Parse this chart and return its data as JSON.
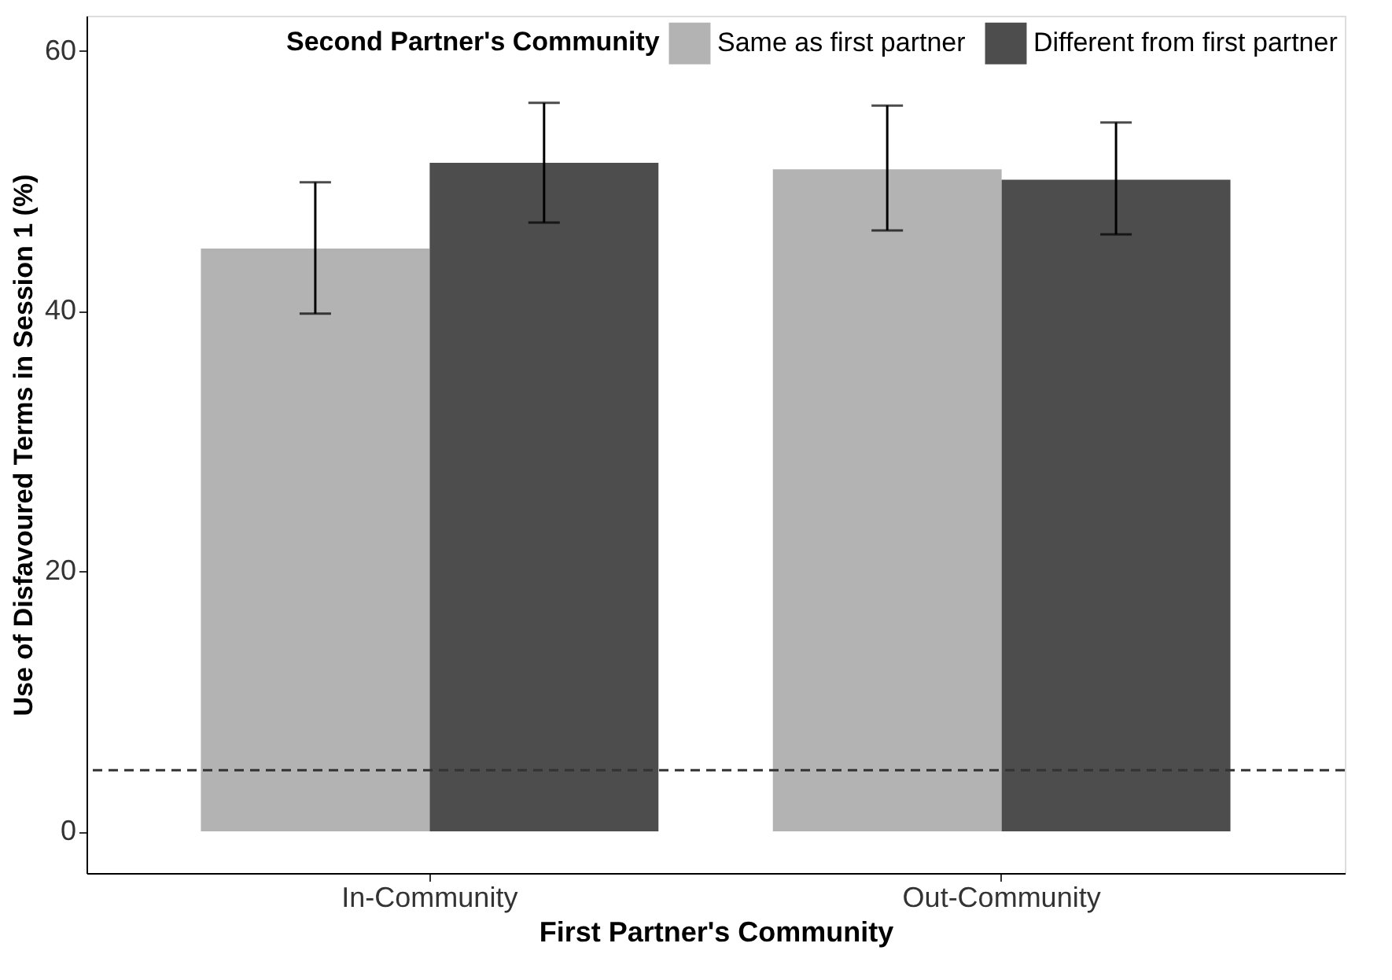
{
  "chart_data": {
    "type": "bar",
    "xlabel": "First Partner's Community",
    "ylabel": "Use of Disfavoured Terms in Session 1 (%)",
    "legend_title": "Second Partner's Community",
    "categories": [
      "In-Community",
      "Out-Community"
    ],
    "series": [
      {
        "name": "Same as first partner",
        "color": "#b3b3b3",
        "values": [
          44.8,
          50.9
        ],
        "errors": [
          [
            39.8,
            49.9
          ],
          [
            46.2,
            55.8
          ]
        ]
      },
      {
        "name": "Different from first partner",
        "color": "#4d4d4d",
        "values": [
          51.4,
          50.1
        ],
        "errors": [
          [
            46.8,
            56.0
          ],
          [
            45.9,
            54.5
          ]
        ]
      }
    ],
    "ylim": [
      -3.2,
      62.7
    ],
    "yticks": [
      0,
      20,
      40,
      60
    ],
    "grid": false,
    "legend": "top right",
    "ref_lines": [
      {
        "axis": "y",
        "value": 4.7,
        "line_style": "dashed",
        "color": "#333333"
      }
    ]
  }
}
